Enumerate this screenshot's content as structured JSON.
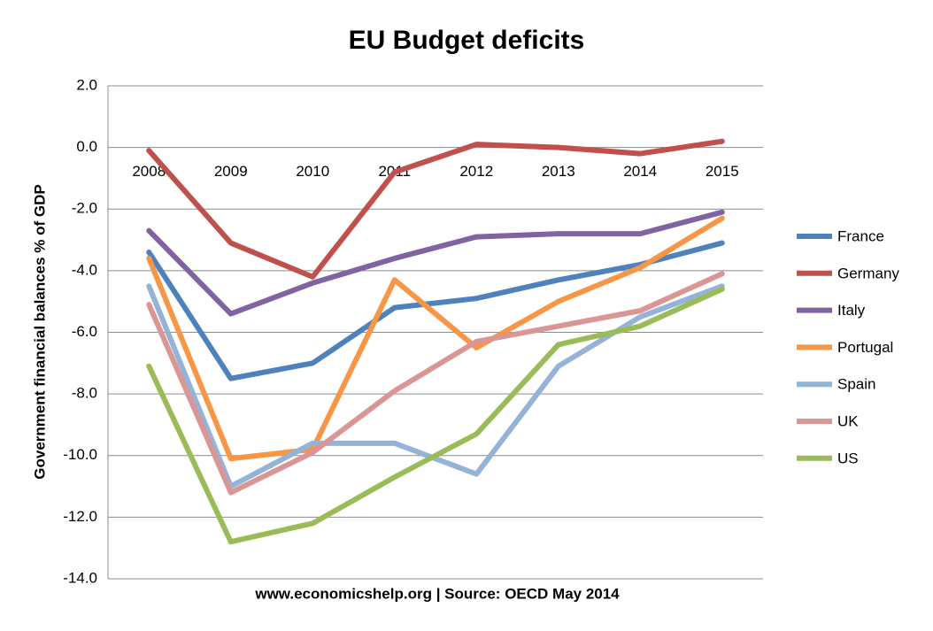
{
  "chart_data": {
    "type": "line",
    "title": "EU Budget deficits",
    "y_label": "Government financial balances % of GDP",
    "source": "www.economicshelp.org | Source: OECD May 2014",
    "categories": [
      "2008",
      "2009",
      "2010",
      "2011",
      "2012",
      "2013",
      "2014",
      "2015"
    ],
    "series": [
      {
        "name": "France",
        "color": "#4f81bd",
        "values": [
          -3.4,
          -7.5,
          -7.0,
          -5.2,
          -4.9,
          -4.3,
          -3.8,
          -3.1
        ]
      },
      {
        "name": "Germany",
        "color": "#c0504d",
        "values": [
          -0.1,
          -3.1,
          -4.2,
          -0.8,
          0.1,
          0.0,
          -0.2,
          0.2
        ]
      },
      {
        "name": "Italy",
        "color": "#8064a2",
        "values": [
          -2.7,
          -5.4,
          -4.4,
          -3.6,
          -2.9,
          -2.8,
          -2.8,
          -2.1
        ]
      },
      {
        "name": "Portugal",
        "color": "#f79646",
        "values": [
          -3.6,
          -10.1,
          -9.8,
          -4.3,
          -6.5,
          -5.0,
          -3.9,
          -2.3
        ]
      },
      {
        "name": "Spain",
        "color": "#95b3d7",
        "values": [
          -4.5,
          -11.0,
          -9.6,
          -9.6,
          -10.6,
          -7.1,
          -5.5,
          -4.5
        ]
      },
      {
        "name": "UK",
        "color": "#d99694",
        "values": [
          -5.1,
          -11.2,
          -9.9,
          -7.9,
          -6.3,
          -5.8,
          -5.3,
          -4.1
        ]
      },
      {
        "name": "US",
        "color": "#9bbb59",
        "values": [
          -7.1,
          -12.8,
          -12.2,
          -10.7,
          -9.3,
          -6.4,
          -5.8,
          -4.6
        ]
      }
    ],
    "ylim": [
      -14,
      2
    ],
    "yticks": [
      {
        "value": -14,
        "label": "-14.0"
      },
      {
        "value": -12,
        "label": "-12.0"
      },
      {
        "value": -10,
        "label": "-10.0"
      },
      {
        "value": -8,
        "label": "-8.0"
      },
      {
        "value": -6,
        "label": "-6.0"
      },
      {
        "value": -4,
        "label": "-4.0"
      },
      {
        "value": -2,
        "label": "-2.0"
      },
      {
        "value": 0,
        "label": "0.0"
      },
      {
        "value": 2,
        "label": "2.0"
      }
    ],
    "grid": true,
    "legend": "right"
  }
}
